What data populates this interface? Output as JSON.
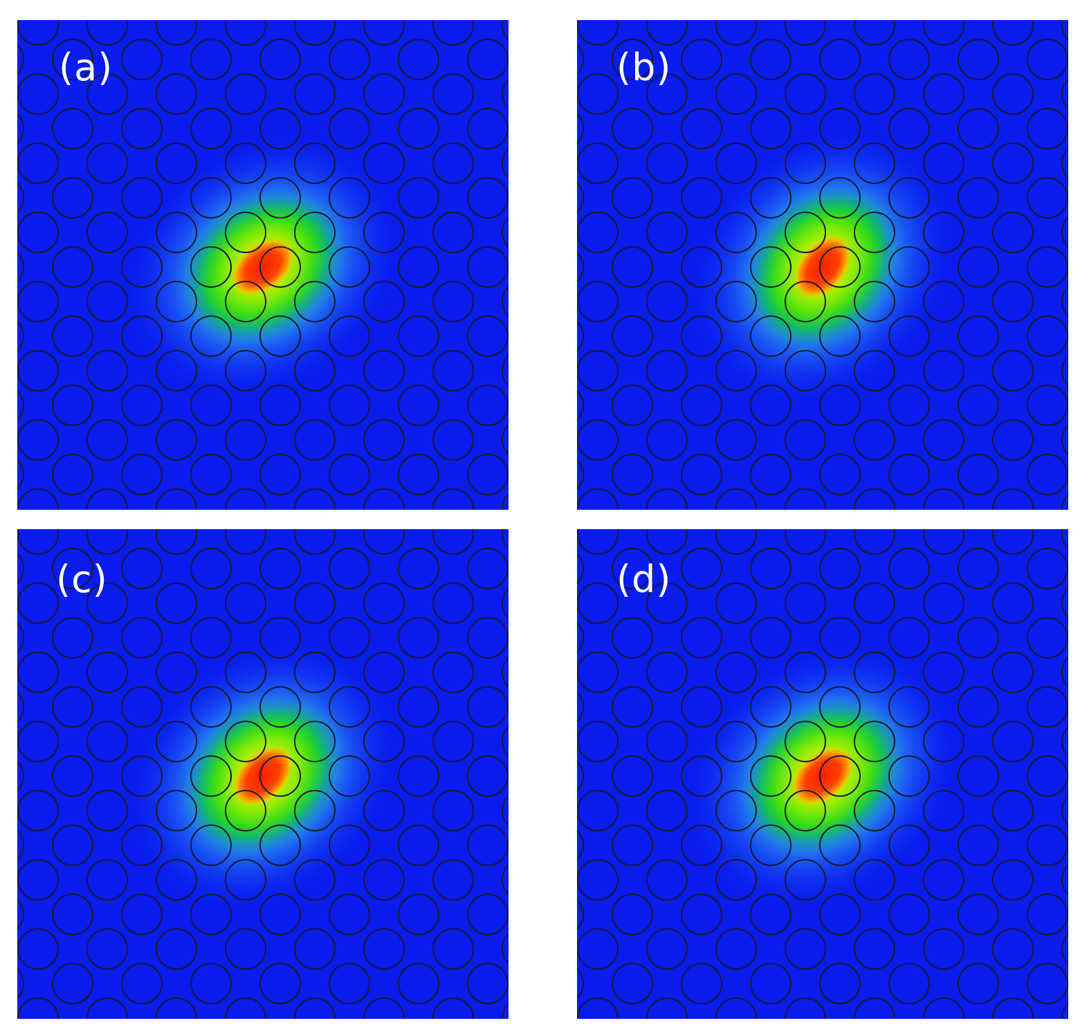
{
  "panels": [
    {
      "id": "a",
      "label": "(a)",
      "mode_angle_deg": -38
    },
    {
      "id": "b",
      "label": "(b)",
      "mode_angle_deg": -52
    },
    {
      "id": "c",
      "label": "(c)",
      "mode_angle_deg": -45
    },
    {
      "id": "d",
      "label": "(d)",
      "mode_angle_deg": -40
    }
  ],
  "colors": {
    "background": "#0a1cf0",
    "hole_outline": "#1a1a2e",
    "field_peak": "#ff1e00",
    "field_mid": "#00e000",
    "field_edge": "#40e0ff",
    "label_text": "#ffffff"
  },
  "lattice": {
    "type": "triangular",
    "hole_shape": "circle"
  }
}
